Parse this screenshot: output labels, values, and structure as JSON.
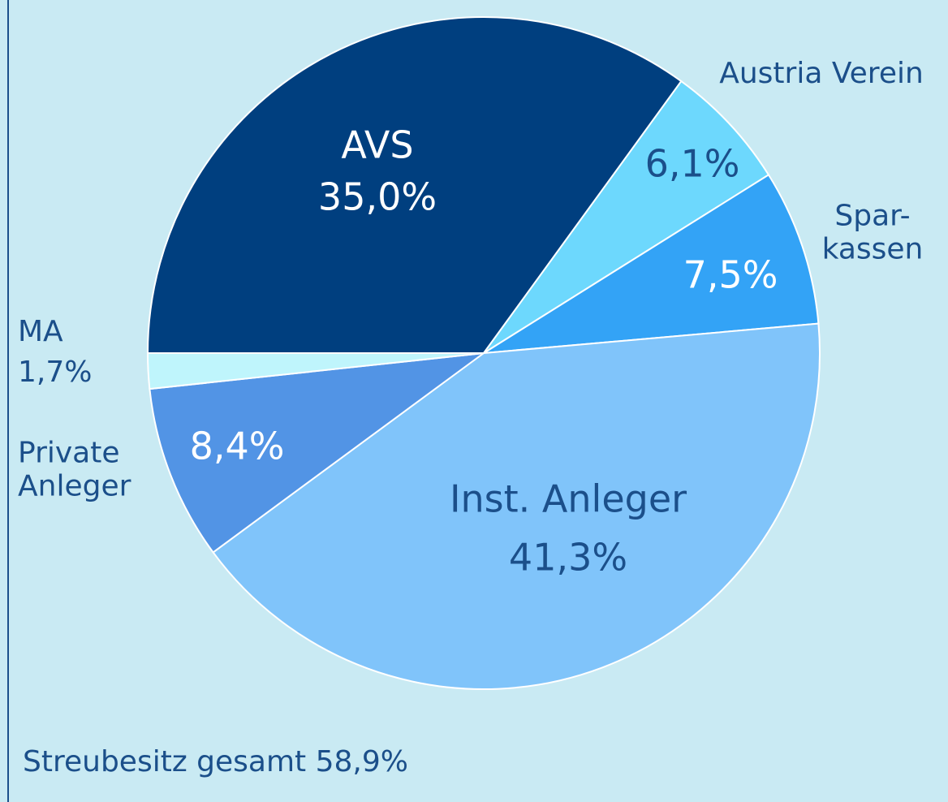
{
  "chart_data": {
    "type": "pie",
    "categories": [
      "AVS",
      "Austria Verein",
      "Spar-\nkassen",
      "Inst. Anleger",
      "Private\nAnleger",
      "MA"
    ],
    "values": [
      35.0,
      6.1,
      7.5,
      41.3,
      8.4,
      1.7
    ],
    "value_labels": [
      "35,0%",
      "6,1%",
      "7,5%",
      "41,3%",
      "8,4%",
      "1,7%"
    ],
    "colors": [
      "#003f7f",
      "#6dd8fd",
      "#33a3f6",
      "#80c4fa",
      "#5294e5",
      "#bff5fc"
    ],
    "annotation": "Streubesitz gesamt 58,9%"
  }
}
